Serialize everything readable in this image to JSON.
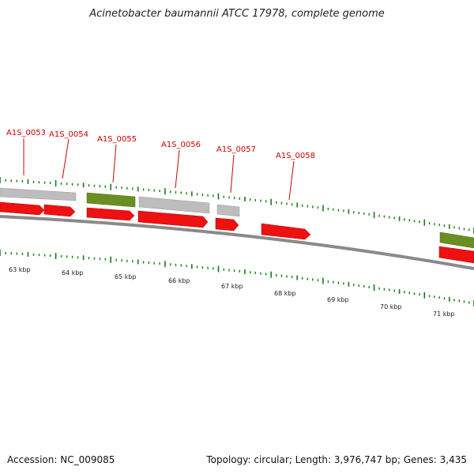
{
  "header": {
    "title": "Acinetobacter baumannii ATCC 17978, complete genome"
  },
  "footer": {
    "accession": "Accession: NC_009085",
    "stats": "Topology: circular; Length: 3,976,747 bp; Genes: 3,435"
  },
  "colors": {
    "cds": "#ee1111",
    "gray_feature": "#bbbbbb",
    "green_feature": "#6b8e23",
    "tick": "#1a7a1a",
    "backbone": "#808080",
    "label": "#cc0000"
  },
  "gene_labels": [
    {
      "name": "A1S_0053"
    },
    {
      "name": "A1S_0054"
    },
    {
      "name": "A1S_0055"
    },
    {
      "name": "A1S_0056"
    },
    {
      "name": "A1S_0057"
    },
    {
      "name": "A1S_0058"
    }
  ],
  "kbp_labels": [
    "63 kbp",
    "64 kbp",
    "65 kbp",
    "66 kbp",
    "67 kbp",
    "68 kbp",
    "69 kbp",
    "70 kbp",
    "71 kbp"
  ]
}
